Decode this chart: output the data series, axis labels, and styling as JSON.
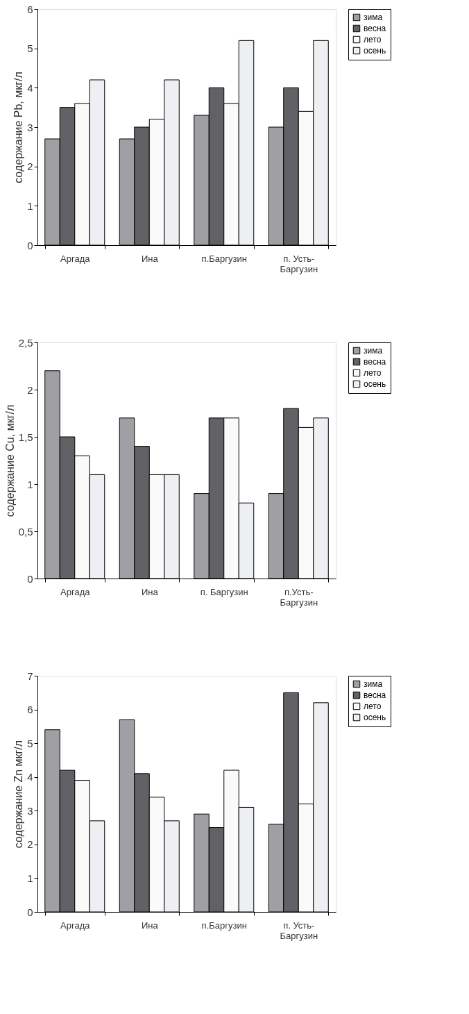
{
  "chart_data": [
    {
      "type": "bar",
      "ylabel": "содержание  Pb, мкг/л",
      "categories": [
        "Аргада",
        "Ина",
        "п.Баргузин",
        "п. Усть-Баргузин"
      ],
      "ylim": [
        0,
        6
      ],
      "yticks": [
        0,
        1,
        2,
        3,
        4,
        5,
        6
      ],
      "legend": "right",
      "grid": false,
      "series": [
        {
          "name": "зима",
          "color": "#a0a0a4",
          "values": [
            2.7,
            2.7,
            3.3,
            3.0
          ]
        },
        {
          "name": "весна",
          "color": "#626266",
          "values": [
            3.5,
            3.0,
            4.0,
            4.0
          ]
        },
        {
          "name": "лето",
          "color": "#fafafa",
          "values": [
            3.6,
            3.2,
            3.6,
            3.4
          ]
        },
        {
          "name": "осень",
          "color": "#eeeff2",
          "values": [
            4.2,
            4.2,
            5.2,
            5.2
          ]
        }
      ]
    },
    {
      "type": "bar",
      "ylabel": "содержание  Cu, мкг/л",
      "categories": [
        "Аргада",
        "Ина",
        "п. Баргузин",
        "п.Усть-Баргузин"
      ],
      "ylim": [
        0,
        2.5
      ],
      "yticks": [
        0,
        {
          "value": 0.5,
          "label": "0,5"
        },
        1,
        {
          "value": 1.5,
          "label": "1,5"
        },
        2,
        {
          "value": 2.5,
          "label": "2,5"
        }
      ],
      "legend": "right",
      "grid": false,
      "series": [
        {
          "name": "зима",
          "color": "#a0a0a4",
          "values": [
            2.2,
            1.7,
            0.9,
            0.9
          ]
        },
        {
          "name": "весна",
          "color": "#626266",
          "values": [
            1.5,
            1.4,
            1.7,
            1.8
          ]
        },
        {
          "name": "лето",
          "color": "#fafafa",
          "values": [
            1.3,
            1.1,
            1.7,
            1.6
          ]
        },
        {
          "name": "осень",
          "color": "#eeeff2",
          "values": [
            1.1,
            1.1,
            0.8,
            1.7
          ]
        }
      ]
    },
    {
      "type": "bar",
      "ylabel": "содержание  Zn мкг/л",
      "categories": [
        "Аргада",
        "Ина",
        "п.Баргузин",
        "п. Усть-Баргузин"
      ],
      "ylim": [
        0,
        7
      ],
      "yticks": [
        0,
        1,
        2,
        3,
        4,
        5,
        6,
        7
      ],
      "legend": "right",
      "grid": false,
      "series": [
        {
          "name": "зима",
          "color": "#a0a0a4",
          "values": [
            5.4,
            5.7,
            2.9,
            2.6
          ]
        },
        {
          "name": "весна",
          "color": "#626266",
          "values": [
            4.2,
            4.1,
            2.5,
            6.5
          ]
        },
        {
          "name": "лето",
          "color": "#fafafa",
          "values": [
            3.9,
            3.4,
            4.2,
            3.2
          ]
        },
        {
          "name": "осень",
          "color": "#eeeff2",
          "values": [
            2.7,
            2.7,
            3.1,
            6.2
          ]
        }
      ]
    }
  ]
}
